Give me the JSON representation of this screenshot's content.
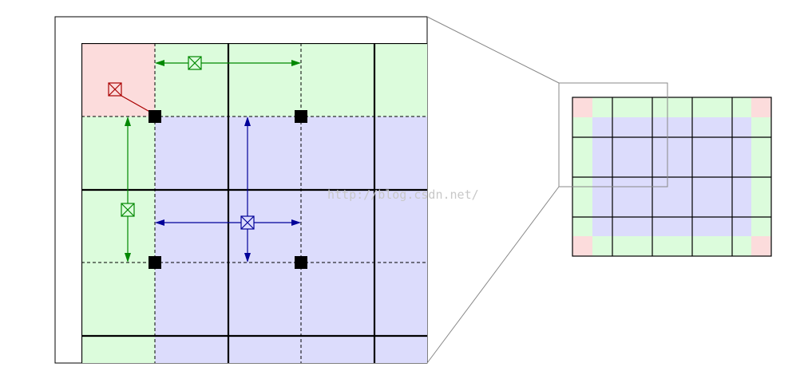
{
  "watermark": {
    "text": "http://blog.csdn.net/"
  },
  "colors": {
    "corner_fill": "#fcdcdc",
    "edge_fill": "#dcfcdc",
    "interior_fill": "#dcdcfc",
    "green_arrow": "#008800",
    "blue_arrow": "#000099",
    "red_marker": "#aa0000",
    "grid_line": "#000000",
    "callout_line": "#888888",
    "watermark": "#c8c8c8"
  },
  "icons": {
    "sample_marker": "boxed-x-icon",
    "pixel_center": "filled-square-icon"
  },
  "overview": {
    "columns": 5,
    "rows": 4
  }
}
